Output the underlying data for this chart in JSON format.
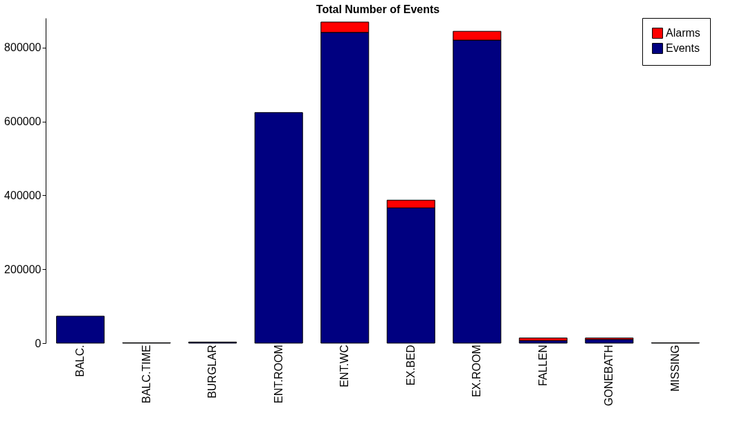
{
  "chart_data": {
    "type": "bar",
    "title": "Total Number of Events",
    "stacked": true,
    "categories": [
      "BALC.",
      "BALC.TIME",
      "BURGLAR",
      "ENT.ROOM",
      "ENT.WC",
      "EX.BED",
      "EX.ROOM",
      "FALLEN",
      "GONEBATH",
      "MISSING"
    ],
    "series": [
      {
        "name": "Events",
        "color": "#000080",
        "values": [
          73000,
          1000,
          3000,
          624000,
          841000,
          366000,
          820000,
          7000,
          10000,
          1000
        ]
      },
      {
        "name": "Alarms",
        "color": "#ff0000",
        "values": [
          null,
          null,
          null,
          null,
          28000,
          21000,
          24000,
          7000,
          4000,
          null
        ]
      }
    ],
    "ylim": [
      0,
      880000
    ],
    "yticks": [
      0,
      200000,
      400000,
      600000,
      800000
    ],
    "grid": false,
    "legend": "top right"
  }
}
